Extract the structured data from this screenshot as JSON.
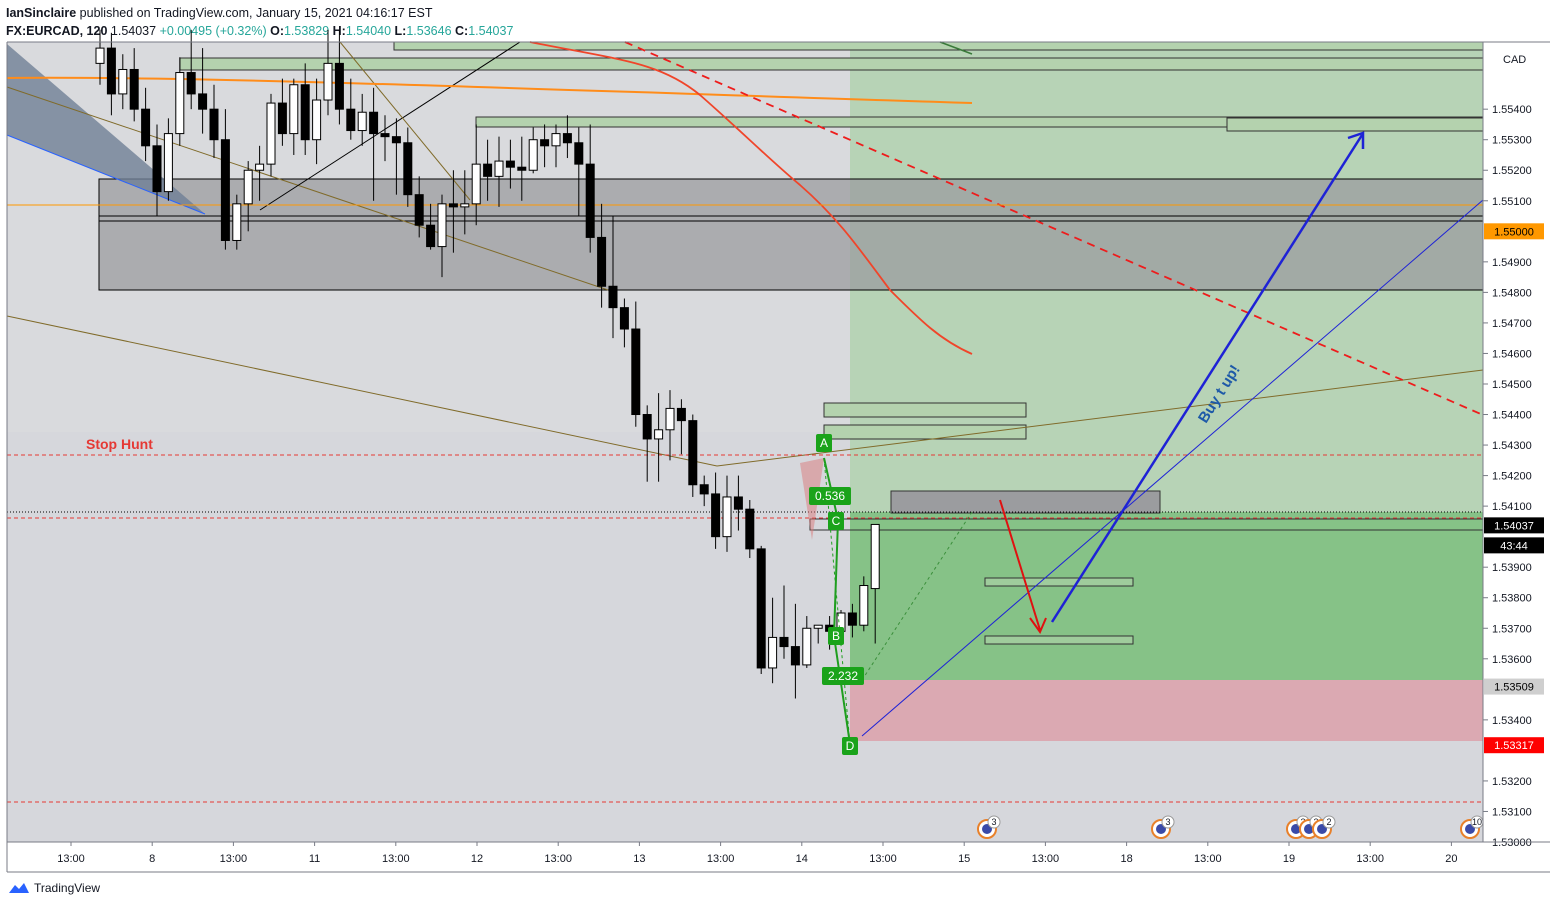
{
  "header": {
    "author": "IanSinclaire",
    "published": "published on TradingView.com, January 15, 2021 04:16:17 EST",
    "symbol": "FX:EURCAD, 120",
    "last": "1.54037",
    "change": "+0.00495 (+0.32%)",
    "o_label": "O:",
    "o": "1.53829",
    "h_label": "H:",
    "h": "1.54040",
    "l_label": "L:",
    "l": "1.53646",
    "c_label": "C:",
    "c": "1.54037"
  },
  "footer": {
    "brand": "TradingView"
  },
  "chart_data": {
    "type": "candlestick",
    "currency": "CAD",
    "ylim": [
      1.53,
      1.5562
    ],
    "y_ticks": [
      "1.55400",
      "1.55300",
      "1.55200",
      "1.55100",
      "1.55000",
      "1.54900",
      "1.54800",
      "1.54700",
      "1.54600",
      "1.54500",
      "1.54400",
      "1.54300",
      "1.54200",
      "1.54100",
      "1.54037",
      "1.53900",
      "1.53800",
      "1.53700",
      "1.53600",
      "1.53509",
      "1.53400",
      "1.53317",
      "1.53200",
      "1.53100",
      "1.53000"
    ],
    "price_badges": [
      {
        "value": "1.55000",
        "bg": "#ff9800",
        "fg": "#000000"
      },
      {
        "value": "1.54037",
        "bg": "#000000",
        "fg": "#ffffff"
      },
      {
        "value": "43:44",
        "bg": "#000000",
        "fg": "#ffffff"
      },
      {
        "value": "1.53509",
        "bg": "#cfcfcf",
        "fg": "#000000"
      },
      {
        "value": "1.53317",
        "bg": "#ff0000",
        "fg": "#ffffff"
      }
    ],
    "x_ticks": [
      "13:00",
      "8",
      "13:00",
      "11",
      "13:00",
      "12",
      "13:00",
      "13",
      "13:00",
      "14",
      "13:00",
      "15",
      "13:00",
      "18",
      "13:00",
      "19",
      "13:00",
      "20"
    ],
    "annotations": {
      "stop_hunt": "Stop Hunt",
      "buy_text": "Buy t up!",
      "pattern_labels": [
        "A",
        "B",
        "C",
        "D"
      ],
      "ratios": [
        "0.536",
        "2.232"
      ]
    },
    "event_badges": [
      "3",
      "3",
      "2",
      "2",
      "2",
      "10"
    ],
    "candles": [
      [
        1.5555,
        1.5566,
        1.5548,
        1.556
      ],
      [
        1.556,
        1.5565,
        1.5538,
        1.5545
      ],
      [
        1.5545,
        1.5558,
        1.554,
        1.5553
      ],
      [
        1.5553,
        1.556,
        1.5536,
        1.554
      ],
      [
        1.554,
        1.5547,
        1.5523,
        1.5528
      ],
      [
        1.5528,
        1.5535,
        1.5505,
        1.5513
      ],
      [
        1.5513,
        1.5537,
        1.551,
        1.5532
      ],
      [
        1.5532,
        1.5557,
        1.5528,
        1.5552
      ],
      [
        1.5552,
        1.5566,
        1.554,
        1.5545
      ],
      [
        1.5545,
        1.556,
        1.5532,
        1.554
      ],
      [
        1.554,
        1.5548,
        1.5524,
        1.553
      ],
      [
        1.553,
        1.554,
        1.5494,
        1.5497
      ],
      [
        1.5497,
        1.5512,
        1.5494,
        1.5509
      ],
      [
        1.5509,
        1.5523,
        1.55,
        1.552
      ],
      [
        1.552,
        1.5528,
        1.551,
        1.5522
      ],
      [
        1.5522,
        1.5545,
        1.5518,
        1.5542
      ],
      [
        1.5542,
        1.555,
        1.5528,
        1.5532
      ],
      [
        1.5532,
        1.555,
        1.5525,
        1.5548
      ],
      [
        1.5548,
        1.5555,
        1.5525,
        1.553
      ],
      [
        1.553,
        1.555,
        1.5522,
        1.5543
      ],
      [
        1.5543,
        1.5566,
        1.5538,
        1.5555
      ],
      [
        1.5555,
        1.5566,
        1.5535,
        1.554
      ],
      [
        1.554,
        1.555,
        1.553,
        1.5533
      ],
      [
        1.5533,
        1.5545,
        1.5528,
        1.5539
      ],
      [
        1.5539,
        1.5547,
        1.551,
        1.5532
      ],
      [
        1.5532,
        1.5538,
        1.5523,
        1.5531
      ],
      [
        1.5531,
        1.5537,
        1.5512,
        1.5529
      ],
      [
        1.5529,
        1.5534,
        1.5508,
        1.5512
      ],
      [
        1.5512,
        1.5518,
        1.5498,
        1.5502
      ],
      [
        1.5502,
        1.5509,
        1.5494,
        1.5495
      ],
      [
        1.5495,
        1.5512,
        1.5485,
        1.5509
      ],
      [
        1.5509,
        1.552,
        1.5493,
        1.5508
      ],
      [
        1.5508,
        1.552,
        1.5499,
        1.5509
      ],
      [
        1.5509,
        1.5535,
        1.5502,
        1.5522
      ],
      [
        1.5522,
        1.553,
        1.551,
        1.5518
      ],
      [
        1.5518,
        1.5531,
        1.5508,
        1.5523
      ],
      [
        1.5523,
        1.553,
        1.5514,
        1.5521
      ],
      [
        1.5521,
        1.5531,
        1.551,
        1.552
      ],
      [
        1.552,
        1.5534,
        1.5519,
        1.553
      ],
      [
        1.553,
        1.5535,
        1.5521,
        1.5528
      ],
      [
        1.5528,
        1.5535,
        1.5521,
        1.5532
      ],
      [
        1.5532,
        1.5538,
        1.5524,
        1.5529
      ],
      [
        1.5529,
        1.5534,
        1.5505,
        1.5522
      ],
      [
        1.5522,
        1.5535,
        1.5493,
        1.5498
      ],
      [
        1.5498,
        1.5509,
        1.5475,
        1.5482
      ],
      [
        1.5482,
        1.5505,
        1.5465,
        1.5475
      ],
      [
        1.5475,
        1.5478,
        1.5462,
        1.5468
      ],
      [
        1.5468,
        1.5477,
        1.5436,
        1.544
      ],
      [
        1.544,
        1.5443,
        1.5418,
        1.5432
      ],
      [
        1.5432,
        1.5447,
        1.5418,
        1.5435
      ],
      [
        1.5435,
        1.5448,
        1.5425,
        1.5442
      ],
      [
        1.5442,
        1.5445,
        1.5427,
        1.5438
      ],
      [
        1.5438,
        1.544,
        1.5413,
        1.5417
      ],
      [
        1.5417,
        1.542,
        1.541,
        1.5414
      ],
      [
        1.5414,
        1.5421,
        1.5396,
        1.54
      ],
      [
        1.54,
        1.542,
        1.5395,
        1.5413
      ],
      [
        1.5413,
        1.542,
        1.5402,
        1.5409
      ],
      [
        1.5409,
        1.5412,
        1.5393,
        1.5396
      ],
      [
        1.5396,
        1.5397,
        1.5355,
        1.5357
      ],
      [
        1.5357,
        1.538,
        1.5352,
        1.5367
      ],
      [
        1.5367,
        1.5384,
        1.536,
        1.5364
      ],
      [
        1.5364,
        1.5378,
        1.5347,
        1.5358
      ],
      [
        1.5358,
        1.5374,
        1.5357,
        1.537
      ],
      [
        1.537,
        1.5371,
        1.5365,
        1.5371
      ],
      [
        1.5371,
        1.5374,
        1.5363,
        1.5369
      ],
      [
        1.5369,
        1.5376,
        1.5366,
        1.5375
      ],
      [
        1.5375,
        1.5378,
        1.5367,
        1.5371
      ],
      [
        1.5371,
        1.5387,
        1.5369,
        1.5384
      ],
      [
        1.5383,
        1.5404,
        1.5365,
        1.5404
      ]
    ],
    "colors": {
      "up": "#ffffff",
      "down": "#000000",
      "accent_orange": "#ff9800",
      "red": "#ff0000",
      "green": "#089981",
      "blue": "#1e22d6"
    }
  }
}
